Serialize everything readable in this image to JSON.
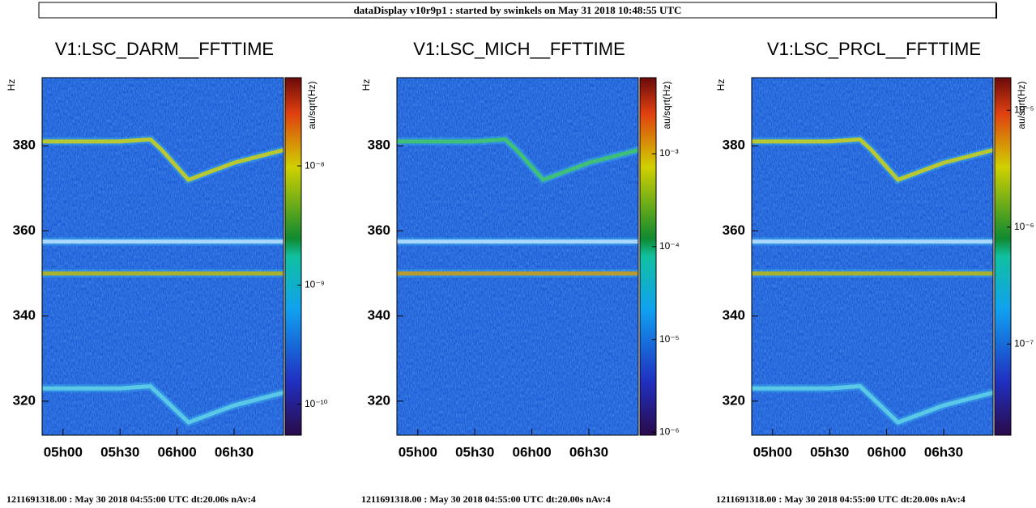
{
  "header": "dataDisplay v10r9p1 : started by swinkels on May 31 2018 10:48:55 UTC",
  "chart_data": [
    {
      "type": "spectrogram",
      "title": "V1:LSC_DARM__FFTTIME",
      "y_label": "Hz",
      "colorbar_label": "au/sqrt(Hz)",
      "footer": "1211691318.00 : May 30 2018 04:55:00 UTC dt:20.00s nAv:4",
      "xlim": [
        289,
        416
      ],
      "xticks": [
        {
          "value": 300,
          "label": "05h00"
        },
        {
          "value": 330,
          "label": "05h30"
        },
        {
          "value": 360,
          "label": "06h00"
        },
        {
          "value": 390,
          "label": "06h30"
        }
      ],
      "ylim": [
        312,
        396
      ],
      "yticks": [
        320,
        340,
        360,
        380
      ],
      "clim": [
        5.5e-11,
        5.5e-08
      ],
      "clog": true,
      "cticks": [
        {
          "value": 1e-10,
          "label": "10⁻¹⁰"
        },
        {
          "value": 1e-09,
          "label": "10⁻⁹"
        },
        {
          "value": 1e-08,
          "label": "10⁻⁸"
        }
      ],
      "x": [
        289,
        330,
        346,
        352,
        366,
        390,
        416
      ],
      "series": [
        {
          "color": "#b8c832",
          "values": [
            381,
            381,
            381.5,
            379,
            372,
            376,
            379
          ]
        },
        {
          "color": "#a8b030",
          "values": [
            350,
            350,
            350,
            350,
            350,
            350,
            350
          ]
        },
        {
          "color": "#5cc8e8",
          "values": [
            323,
            323,
            323.5,
            321,
            315,
            319,
            322
          ]
        },
        {
          "color": "#a8d8ff",
          "values": [
            357.5,
            357.5,
            357.5,
            357.5,
            357.5,
            357.5,
            357.5
          ]
        }
      ]
    },
    {
      "type": "spectrogram",
      "title": "V1:LSC_MICH__FFTTIME",
      "y_label": "Hz",
      "colorbar_label": "au/sqrt(Hz)",
      "footer": "1211691318.00 : May 30 2018 04:55:00 UTC dt:20.00s nAv:4",
      "xlim": [
        289,
        416
      ],
      "xticks": [
        {
          "value": 300,
          "label": "05h00"
        },
        {
          "value": 330,
          "label": "05h30"
        },
        {
          "value": 360,
          "label": "06h00"
        },
        {
          "value": 390,
          "label": "06h30"
        }
      ],
      "ylim": [
        312,
        396
      ],
      "yticks": [
        320,
        340,
        360,
        380
      ],
      "clim": [
        9.3e-07,
        0.0066
      ],
      "clog": true,
      "cticks": [
        {
          "value": 1e-06,
          "label": "10⁻⁶"
        },
        {
          "value": 1e-05,
          "label": "10⁻⁵"
        },
        {
          "value": 0.0001,
          "label": "10⁻⁴"
        },
        {
          "value": 0.001,
          "label": "10⁻³"
        }
      ],
      "x": [
        289,
        330,
        346,
        352,
        366,
        390,
        416
      ],
      "series": [
        {
          "color": "#3fbf7a",
          "values": [
            381,
            381,
            381.5,
            379,
            372,
            376,
            379
          ]
        },
        {
          "color": "#b89a30",
          "values": [
            350,
            350,
            350,
            350,
            350,
            350,
            350
          ]
        },
        {
          "color": "#a8d8ff",
          "values": [
            357.5,
            357.5,
            357.5,
            357.5,
            357.5,
            357.5,
            357.5
          ]
        }
      ]
    },
    {
      "type": "spectrogram",
      "title": "V1:LSC_PRCL__FFTTIME",
      "y_label": "Hz",
      "colorbar_label": "au/sqrt(Hz)",
      "footer": "1211691318.00 : May 30 2018 04:55:00 UTC dt:20.00s nAv:4",
      "xlim": [
        289,
        416
      ],
      "xticks": [
        {
          "value": 300,
          "label": "05h00"
        },
        {
          "value": 330,
          "label": "05h30"
        },
        {
          "value": 360,
          "label": "06h00"
        },
        {
          "value": 390,
          "label": "06h30"
        }
      ],
      "ylim": [
        312,
        396
      ],
      "yticks": [
        320,
        340,
        360,
        380
      ],
      "clim": [
        1.66e-08,
        1.9e-05
      ],
      "clog": true,
      "cticks": [
        {
          "value": 1e-07,
          "label": "10⁻⁷"
        },
        {
          "value": 1e-06,
          "label": "10⁻⁶"
        },
        {
          "value": 1e-05,
          "label": "10⁻⁵"
        }
      ],
      "x": [
        289,
        330,
        346,
        352,
        366,
        390,
        416
      ],
      "series": [
        {
          "color": "#b8c832",
          "values": [
            381,
            381,
            381.5,
            379,
            372,
            376,
            379
          ]
        },
        {
          "color": "#a8b030",
          "values": [
            350,
            350,
            350,
            350,
            350,
            350,
            350
          ]
        },
        {
          "color": "#5cc8e8",
          "values": [
            323,
            323,
            323.5,
            321,
            315,
            319,
            322
          ]
        },
        {
          "color": "#a8d8ff",
          "values": [
            357.5,
            357.5,
            357.5,
            357.5,
            357.5,
            357.5,
            357.5
          ]
        }
      ]
    }
  ]
}
